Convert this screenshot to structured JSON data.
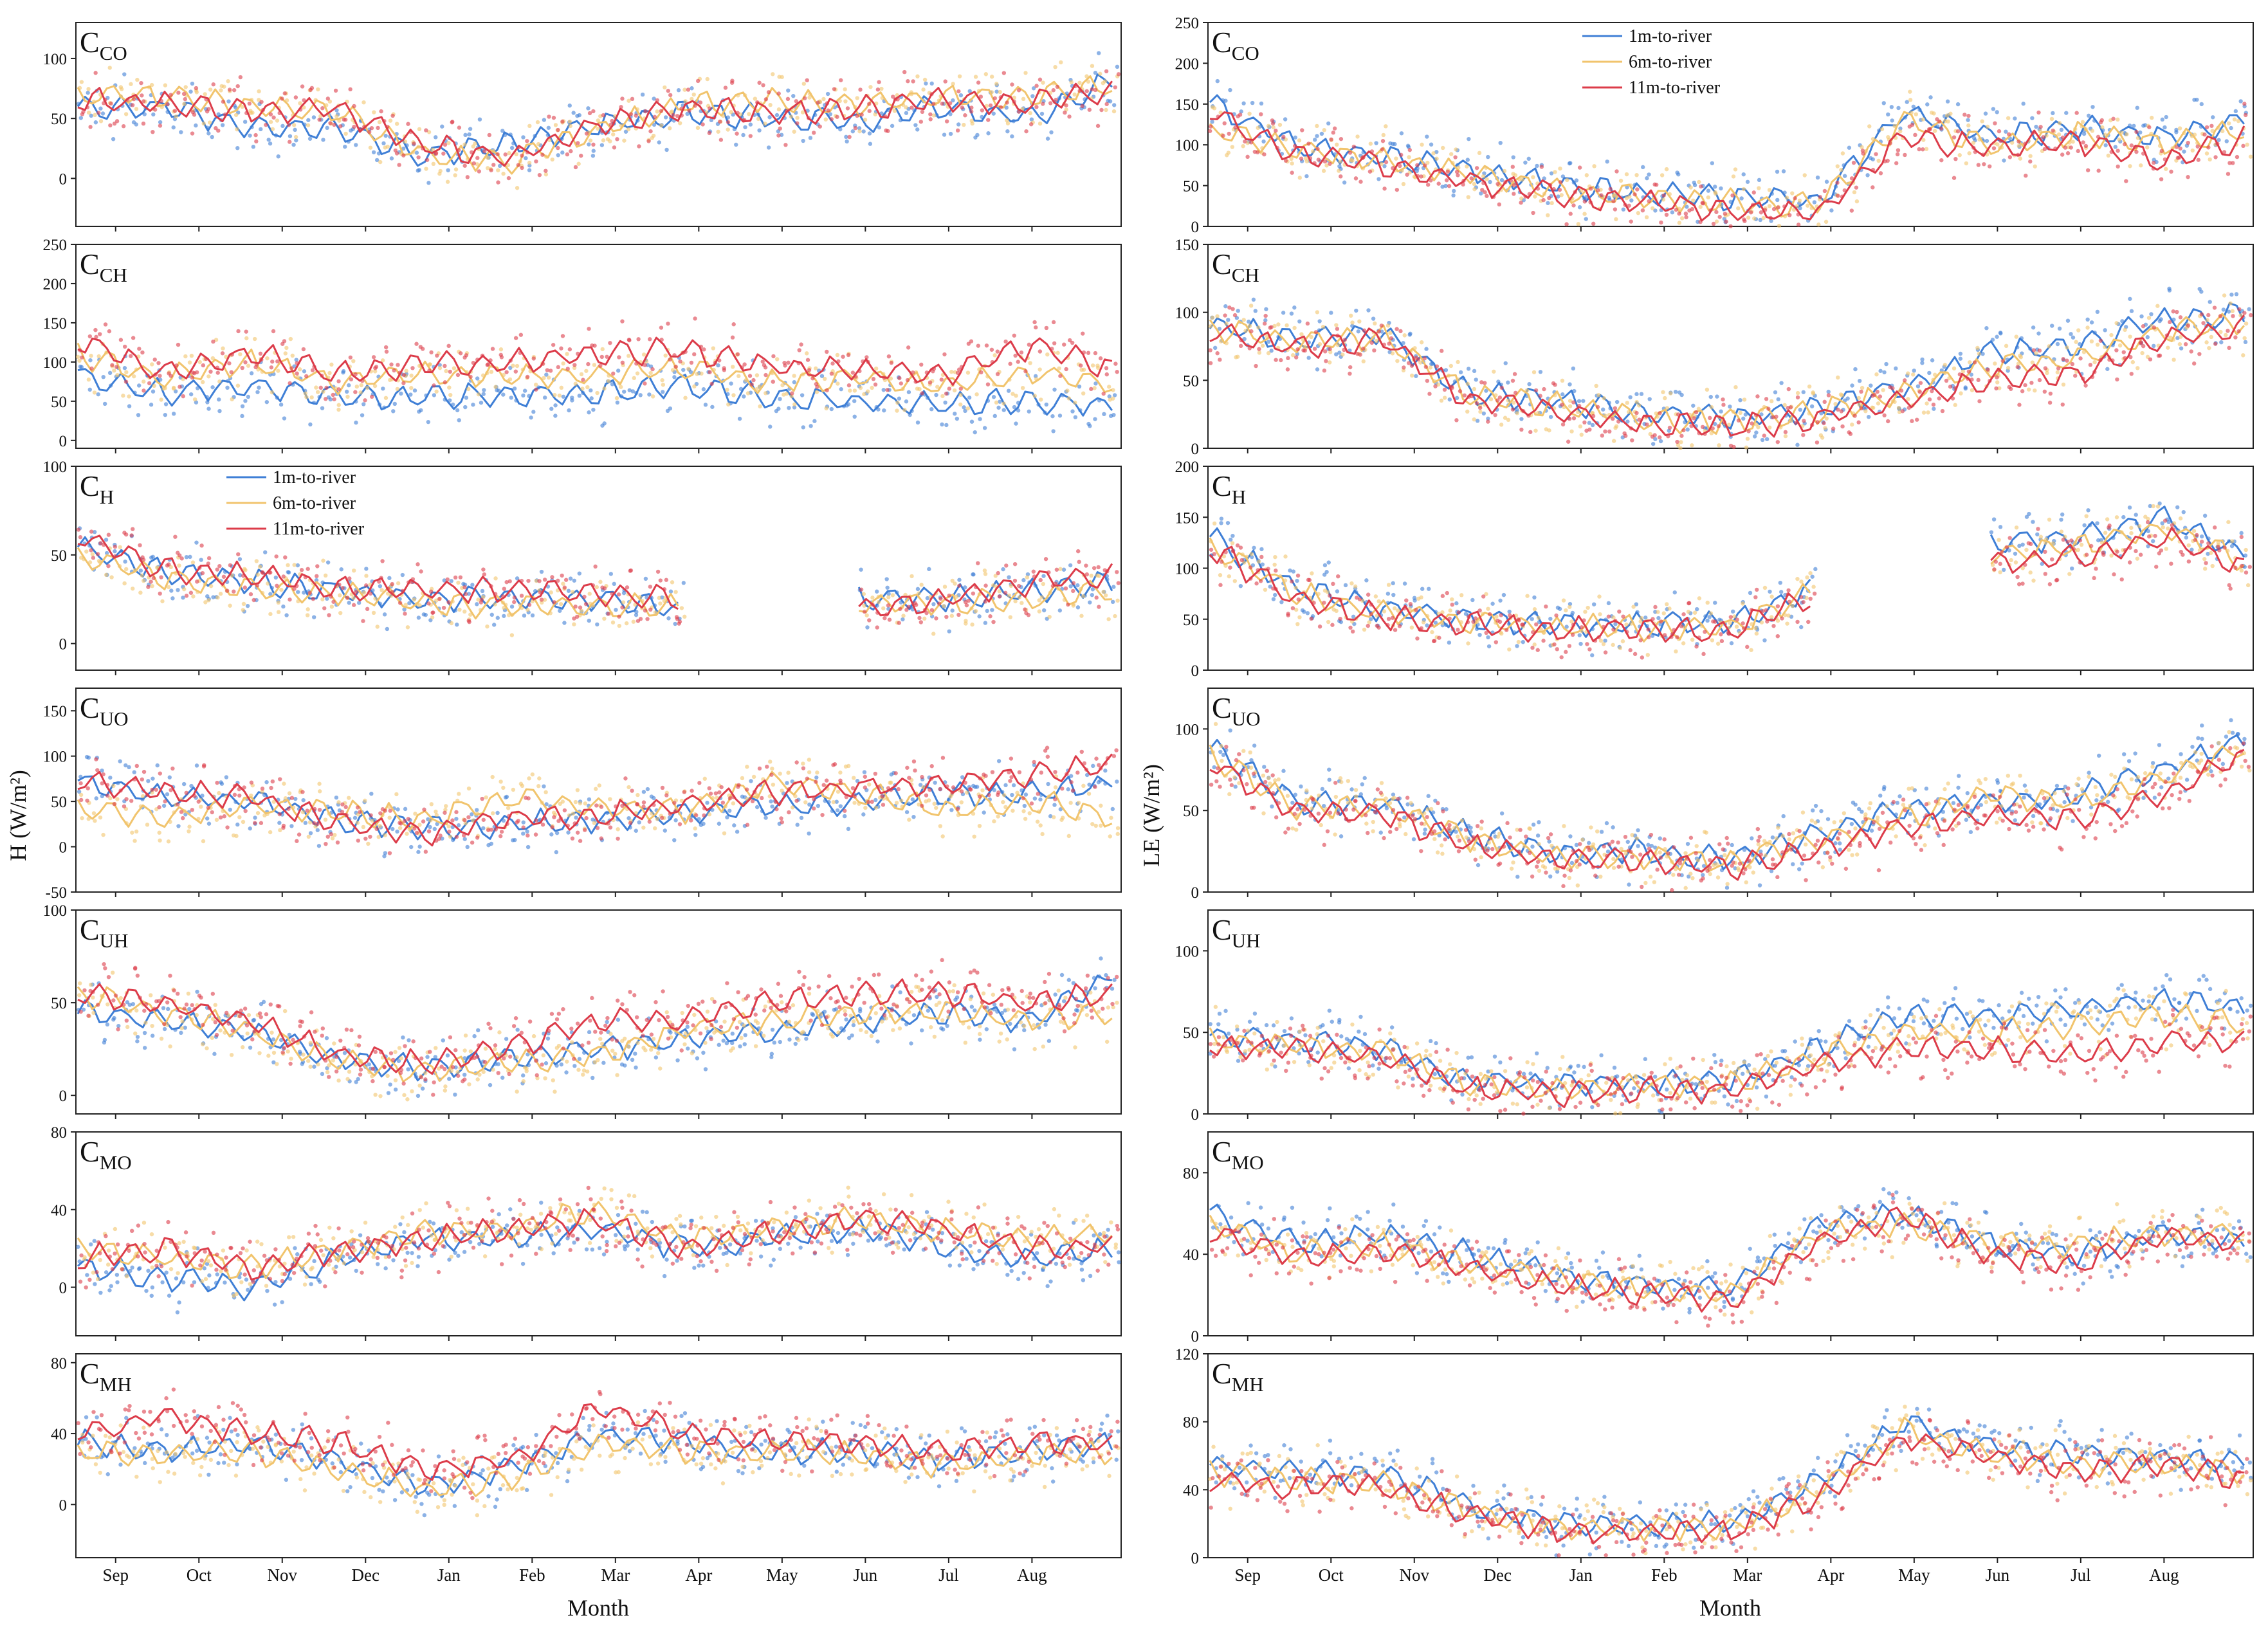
{
  "figure": {
    "x_label": "Month",
    "y_label_left": "H (W/m²)",
    "y_label_right": "LE (W/m²)",
    "month_ticks": [
      "Sep",
      "Oct",
      "Nov",
      "Dec",
      "Jan",
      "Feb",
      "Mar",
      "Apr",
      "May",
      "Jun",
      "Jul",
      "Aug"
    ]
  },
  "legend": {
    "entries": [
      {
        "label": "1m-to-river",
        "color": "#3f7fd6"
      },
      {
        "label": "6m-to-river",
        "color": "#f1c46d"
      },
      {
        "label": "11m-to-river",
        "color": "#dc3c4a"
      }
    ]
  },
  "chart_data": [
    {
      "type": "line",
      "variable": "H",
      "site_main": "C",
      "site_sub": "CO",
      "ylim": [
        -40,
        130
      ],
      "yticks": [
        0,
        50,
        100
      ],
      "series": [
        {
          "name": "1m-to-river",
          "values": [
            60,
            58,
            45,
            40,
            20,
            28,
            45,
            55,
            50,
            48,
            60,
            50,
            85
          ]
        },
        {
          "name": "6m-to-river",
          "values": [
            70,
            68,
            60,
            55,
            18,
            15,
            40,
            62,
            65,
            62,
            68,
            70,
            78
          ]
        },
        {
          "name": "11m-to-river",
          "values": [
            65,
            62,
            55,
            58,
            28,
            18,
            45,
            58,
            55,
            58,
            65,
            62,
            75
          ]
        }
      ]
    },
    {
      "type": "line",
      "variable": "LE",
      "site_main": "C",
      "site_sub": "CO",
      "ylim": [
        0,
        250
      ],
      "yticks": [
        0,
        50,
        100,
        150,
        200,
        250
      ],
      "series": [
        {
          "name": "1m-to-river",
          "values": [
            150,
            100,
            85,
            70,
            50,
            40,
            35,
            30,
            140,
            110,
            120,
            110,
            130
          ]
        },
        {
          "name": "6m-to-river",
          "values": [
            120,
            95,
            80,
            65,
            45,
            35,
            30,
            25,
            130,
            100,
            115,
            100,
            120
          ]
        },
        {
          "name": "11m-to-river",
          "values": [
            140,
            90,
            75,
            55,
            40,
            30,
            20,
            15,
            110,
            95,
            105,
            80,
            110
          ]
        }
      ]
    },
    {
      "type": "line",
      "variable": "H",
      "site_main": "C",
      "site_sub": "CH",
      "ylim": [
        -10,
        250
      ],
      "yticks": [
        0,
        50,
        100,
        150,
        200,
        250
      ],
      "series": [
        {
          "name": "1m-to-river",
          "values": [
            85,
            60,
            70,
            55,
            55,
            60,
            60,
            70,
            55,
            50,
            45,
            50,
            45
          ]
        },
        {
          "name": "6m-to-river",
          "values": [
            110,
            80,
            100,
            75,
            85,
            80,
            85,
            90,
            75,
            80,
            70,
            85,
            70
          ]
        },
        {
          "name": "11m-to-river",
          "values": [
            130,
            85,
            110,
            85,
            95,
            100,
            110,
            115,
            95,
            90,
            85,
            120,
            90
          ]
        }
      ]
    },
    {
      "type": "line",
      "variable": "LE",
      "site_main": "C",
      "site_sub": "CH",
      "ylim": [
        0,
        150
      ],
      "yticks": [
        0,
        50,
        100,
        150
      ],
      "series": [
        {
          "name": "1m-to-river",
          "values": [
            90,
            80,
            85,
            40,
            35,
            25,
            22,
            30,
            45,
            70,
            75,
            95,
            100
          ]
        },
        {
          "name": "6m-to-river",
          "values": [
            88,
            78,
            82,
            38,
            32,
            22,
            20,
            28,
            40,
            60,
            65,
            85,
            95
          ]
        },
        {
          "name": "11m-to-river",
          "values": [
            85,
            75,
            80,
            35,
            28,
            18,
            15,
            22,
            35,
            50,
            55,
            80,
            90
          ]
        }
      ]
    },
    {
      "type": "line",
      "variable": "H",
      "site_main": "C",
      "site_sub": "H",
      "ylim": [
        -15,
        100
      ],
      "yticks": [
        0,
        50,
        100
      ],
      "series": [
        {
          "name": "1m-to-river",
          "values": [
            55,
            40,
            35,
            30,
            25,
            25,
            25,
            20,
            null,
            25,
            25,
            30,
            35
          ]
        },
        {
          "name": "6m-to-river",
          "values": [
            50,
            38,
            32,
            28,
            22,
            22,
            22,
            20,
            null,
            22,
            22,
            25,
            30
          ]
        },
        {
          "name": "11m-to-river",
          "values": [
            60,
            42,
            38,
            32,
            30,
            30,
            28,
            25,
            null,
            20,
            25,
            35,
            38
          ]
        }
      ]
    },
    {
      "type": "line",
      "variable": "LE",
      "site_main": "C",
      "site_sub": "H",
      "ylim": [
        0,
        200
      ],
      "yticks": [
        0,
        50,
        100,
        150,
        200
      ],
      "series": [
        {
          "name": "1m-to-river",
          "values": [
            130,
            80,
            60,
            50,
            45,
            45,
            45,
            85,
            null,
            125,
            130,
            150,
            110
          ]
        },
        {
          "name": "6m-to-river",
          "values": [
            125,
            75,
            55,
            48,
            42,
            42,
            42,
            80,
            null,
            115,
            120,
            140,
            105
          ]
        },
        {
          "name": "11m-to-river",
          "values": [
            120,
            70,
            52,
            45,
            40,
            40,
            38,
            75,
            null,
            105,
            110,
            130,
            100
          ]
        }
      ]
    },
    {
      "type": "line",
      "variable": "H",
      "site_main": "C",
      "site_sub": "UO",
      "ylim": [
        -50,
        175
      ],
      "yticks": [
        -50,
        0,
        50,
        100,
        150
      ],
      "series": [
        {
          "name": "1m-to-river",
          "values": [
            70,
            55,
            50,
            30,
            20,
            25,
            30,
            35,
            45,
            50,
            55,
            60,
            70
          ]
        },
        {
          "name": "6m-to-river",
          "values": [
            40,
            35,
            45,
            40,
            30,
            55,
            45,
            40,
            70,
            60,
            40,
            50,
            30
          ]
        },
        {
          "name": "11m-to-river",
          "values": [
            75,
            60,
            55,
            25,
            15,
            30,
            35,
            45,
            60,
            65,
            70,
            80,
            90
          ]
        }
      ]
    },
    {
      "type": "line",
      "variable": "LE",
      "site_main": "C",
      "site_sub": "UO",
      "ylim": [
        0,
        125
      ],
      "yticks": [
        0,
        50,
        100
      ],
      "series": [
        {
          "name": "1m-to-river",
          "values": [
            90,
            55,
            55,
            35,
            25,
            25,
            20,
            35,
            50,
            55,
            60,
            75,
            95
          ]
        },
        {
          "name": "6m-to-river",
          "values": [
            85,
            52,
            52,
            32,
            22,
            22,
            18,
            32,
            45,
            60,
            55,
            70,
            90
          ]
        },
        {
          "name": "11m-to-river",
          "values": [
            80,
            50,
            48,
            28,
            20,
            20,
            15,
            25,
            40,
            45,
            45,
            60,
            85
          ]
        }
      ]
    },
    {
      "type": "line",
      "variable": "H",
      "site_main": "C",
      "site_sub": "UH",
      "ylim": [
        -10,
        100
      ],
      "yticks": [
        0,
        50,
        100
      ],
      "series": [
        {
          "name": "1m-to-river",
          "values": [
            45,
            40,
            35,
            20,
            15,
            20,
            25,
            30,
            35,
            40,
            45,
            40,
            65
          ]
        },
        {
          "name": "6m-to-river",
          "values": [
            55,
            45,
            35,
            18,
            12,
            18,
            22,
            35,
            40,
            45,
            45,
            40,
            45
          ]
        },
        {
          "name": "11m-to-river",
          "values": [
            55,
            50,
            40,
            22,
            18,
            25,
            40,
            40,
            50,
            55,
            55,
            50,
            55
          ]
        }
      ]
    },
    {
      "type": "line",
      "variable": "LE",
      "site_main": "C",
      "site_sub": "UH",
      "ylim": [
        0,
        125
      ],
      "yticks": [
        0,
        50,
        100
      ],
      "series": [
        {
          "name": "1m-to-river",
          "values": [
            48,
            45,
            40,
            20,
            18,
            20,
            20,
            40,
            60,
            60,
            65,
            70,
            65
          ]
        },
        {
          "name": "6m-to-river",
          "values": [
            45,
            42,
            38,
            18,
            15,
            18,
            18,
            35,
            50,
            50,
            55,
            60,
            55
          ]
        },
        {
          "name": "11m-to-river",
          "values": [
            42,
            40,
            35,
            15,
            12,
            15,
            15,
            30,
            40,
            40,
            35,
            45,
            45
          ]
        }
      ]
    },
    {
      "type": "line",
      "variable": "H",
      "site_main": "C",
      "site_sub": "MO",
      "ylim": [
        -25,
        80
      ],
      "yticks": [
        0,
        40,
        80
      ],
      "series": [
        {
          "name": "1m-to-river",
          "values": [
            10,
            5,
            0,
            15,
            25,
            25,
            30,
            20,
            25,
            30,
            20,
            15,
            20
          ]
        },
        {
          "name": "6m-to-river",
          "values": [
            20,
            15,
            10,
            20,
            28,
            30,
            40,
            25,
            30,
            35,
            30,
            25,
            30
          ]
        },
        {
          "name": "11m-to-river",
          "values": [
            15,
            20,
            10,
            18,
            25,
            30,
            35,
            20,
            28,
            35,
            30,
            20,
            22
          ]
        }
      ]
    },
    {
      "type": "line",
      "variable": "LE",
      "site_main": "C",
      "site_sub": "MO",
      "ylim": [
        0,
        100
      ],
      "yticks": [
        0,
        40,
        80
      ],
      "series": [
        {
          "name": "1m-to-river",
          "values": [
            60,
            45,
            50,
            40,
            30,
            25,
            22,
            55,
            60,
            45,
            40,
            50,
            45
          ]
        },
        {
          "name": "6m-to-river",
          "values": [
            55,
            40,
            45,
            35,
            28,
            22,
            20,
            50,
            55,
            45,
            45,
            50,
            50
          ]
        },
        {
          "name": "11m-to-river",
          "values": [
            50,
            38,
            42,
            32,
            25,
            20,
            18,
            45,
            60,
            40,
            35,
            50,
            45
          ]
        }
      ]
    },
    {
      "type": "line",
      "variable": "H",
      "site_main": "C",
      "site_sub": "MH",
      "ylim": [
        -30,
        85
      ],
      "yticks": [
        0,
        40,
        80
      ],
      "series": [
        {
          "name": "1m-to-river",
          "values": [
            35,
            30,
            35,
            25,
            10,
            20,
            40,
            35,
            30,
            30,
            25,
            30,
            35
          ]
        },
        {
          "name": "6m-to-river",
          "values": [
            30,
            28,
            30,
            20,
            8,
            15,
            35,
            30,
            30,
            28,
            22,
            28,
            30
          ]
        },
        {
          "name": "11m-to-river",
          "values": [
            40,
            50,
            40,
            35,
            20,
            25,
            55,
            40,
            35,
            35,
            30,
            35,
            35
          ]
        }
      ]
    },
    {
      "type": "line",
      "variable": "LE",
      "site_main": "C",
      "site_sub": "MH",
      "ylim": [
        0,
        120
      ],
      "yticks": [
        0,
        40,
        80,
        120
      ],
      "series": [
        {
          "name": "1m-to-river",
          "values": [
            55,
            50,
            50,
            30,
            20,
            20,
            20,
            45,
            80,
            65,
            60,
            60,
            55
          ]
        },
        {
          "name": "6m-to-river",
          "values": [
            50,
            45,
            45,
            28,
            18,
            18,
            18,
            40,
            75,
            60,
            55,
            55,
            50
          ]
        },
        {
          "name": "11m-to-river",
          "values": [
            45,
            42,
            42,
            25,
            15,
            15,
            15,
            35,
            70,
            60,
            50,
            55,
            45
          ]
        }
      ]
    }
  ]
}
